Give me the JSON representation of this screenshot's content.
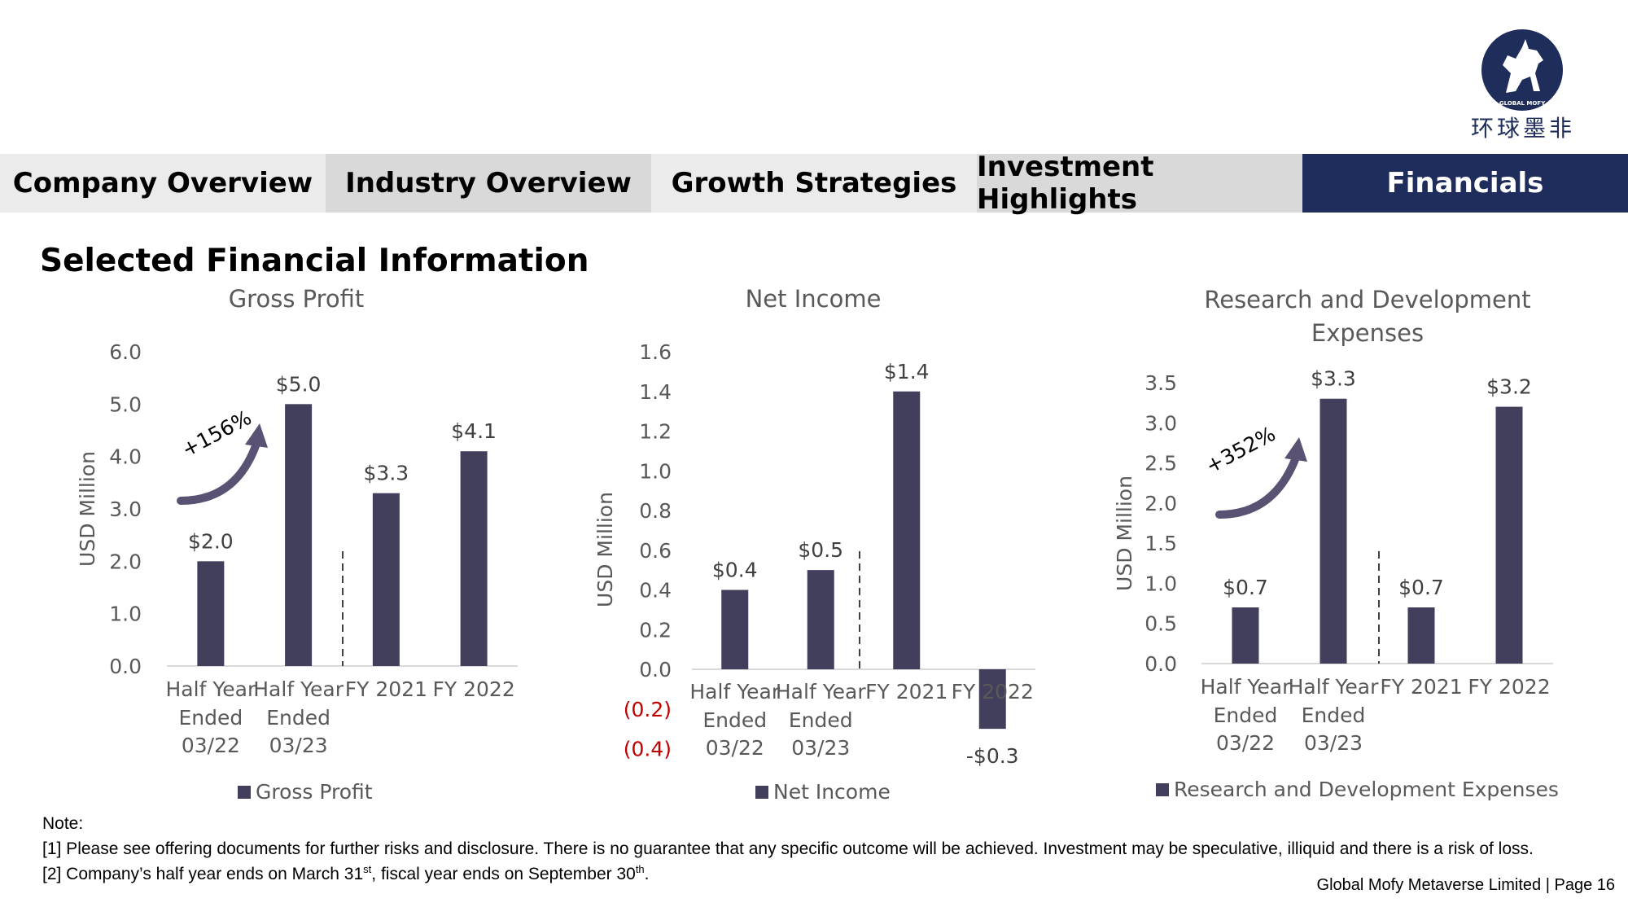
{
  "logo": {
    "text": "环球墨非",
    "badge": "GLOBAL MOFY"
  },
  "nav": {
    "tabs": [
      {
        "label": "Company Overview",
        "active": false
      },
      {
        "label": "Industry Overview",
        "active": false
      },
      {
        "label": "Growth Strategies",
        "active": false
      },
      {
        "label": "Investment Highlights",
        "active": false
      },
      {
        "label": "Financials",
        "active": true
      }
    ]
  },
  "page_title": "Selected Financial Information",
  "colors": {
    "bar": "#423f5c",
    "nav_active": "#1f2d5c",
    "negative_tick": "#c00000",
    "arrow": "#5a5273"
  },
  "chart_data": [
    {
      "type": "bar",
      "title": "Gross Profit",
      "ylabel": "USD Million",
      "categories": [
        [
          "Half Year",
          "Ended",
          "03/22"
        ],
        [
          "Half Year",
          "Ended",
          "03/23"
        ],
        [
          "FY 2021"
        ],
        [
          "FY 2022"
        ]
      ],
      "series": [
        {
          "name": "Gross Profit",
          "values": [
            2.0,
            5.0,
            3.3,
            4.1
          ]
        }
      ],
      "data_labels": [
        "$2.0",
        "$5.0",
        "$3.3",
        "$4.1"
      ],
      "ylim": [
        0,
        6
      ],
      "yticks": [
        "0.0",
        "1.0",
        "2.0",
        "3.0",
        "4.0",
        "5.0",
        "6.0"
      ],
      "annotation": "+156%",
      "grid": false,
      "legend": "bottom"
    },
    {
      "type": "bar",
      "title": "Net Income",
      "ylabel": "USD Million",
      "categories": [
        [
          "Half Year",
          "Ended",
          "03/22"
        ],
        [
          "Half Year",
          "Ended",
          "03/23"
        ],
        [
          "FY 2021"
        ],
        [
          "FY 2022"
        ]
      ],
      "series": [
        {
          "name": "Net Income",
          "values": [
            0.4,
            0.5,
            1.4,
            -0.3
          ]
        }
      ],
      "data_labels": [
        "$0.4",
        "$0.5",
        "$1.4",
        "-$0.3"
      ],
      "ylim": [
        -0.4,
        1.6
      ],
      "yticks": [
        "(0.4)",
        "(0.2)",
        "0.0",
        "0.2",
        "0.4",
        "0.6",
        "0.8",
        "1.0",
        "1.2",
        "1.4",
        "1.6"
      ],
      "grid": false,
      "legend": "bottom"
    },
    {
      "type": "bar",
      "title": "Research and Development Expenses",
      "ylabel": "USD Million",
      "categories": [
        [
          "Half Year",
          "Ended",
          "03/22"
        ],
        [
          "Half Year",
          "Ended",
          "03/23"
        ],
        [
          "FY 2021"
        ],
        [
          "FY 2022"
        ]
      ],
      "series": [
        {
          "name": "Research and Development Expenses",
          "values": [
            0.7,
            3.3,
            0.7,
            3.2
          ]
        }
      ],
      "data_labels": [
        "$0.7",
        "$3.3",
        "$0.7",
        "$3.2"
      ],
      "ylim": [
        0,
        3.5
      ],
      "yticks": [
        "0.0",
        "0.5",
        "1.0",
        "1.5",
        "2.0",
        "2.5",
        "3.0",
        "3.5"
      ],
      "annotation": "+352%",
      "grid": false,
      "legend": "bottom"
    }
  ],
  "notes": {
    "heading": "Note:",
    "note1": "[1] Please see offering documents for further risks and disclosure. There is no guarantee that any specific outcome will be achieved. Investment may be speculative, illiquid and there is a risk of loss.",
    "note2_pre": "[2] Company’s half year ends on March 31",
    "note2_sup1": "st",
    "note2_mid": ", fiscal year ends on September 30",
    "note2_sup2": "th",
    "note2_post": "."
  },
  "footer": "Global Mofy Metaverse Limited | Page 16"
}
